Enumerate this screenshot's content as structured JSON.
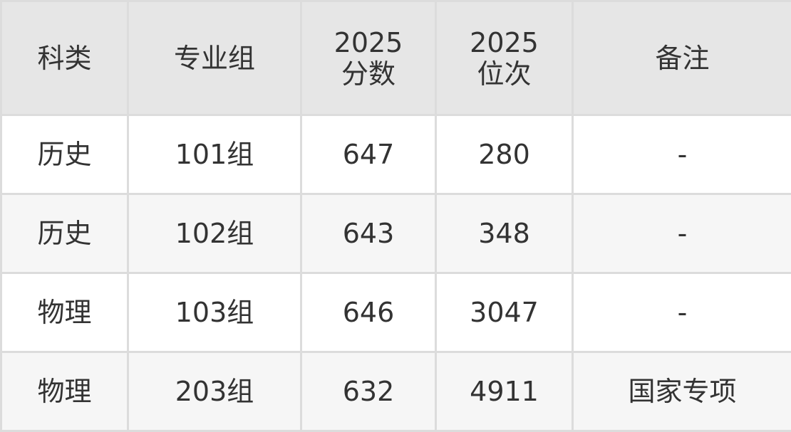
{
  "headers": [
    [
      "科类"
    ],
    [
      "专业组"
    ],
    [
      "2025",
      "分数"
    ],
    [
      "2025",
      "位次"
    ],
    [
      "备注"
    ]
  ],
  "rows": [
    [
      "历史",
      "101组",
      "647",
      "280",
      "-"
    ],
    [
      "历史",
      "102组",
      "643",
      "348",
      "-"
    ],
    [
      "物理",
      "103组",
      "646",
      "3047",
      "-"
    ],
    [
      "物理",
      "203组",
      "632",
      "4911",
      "国家专项"
    ]
  ]
}
